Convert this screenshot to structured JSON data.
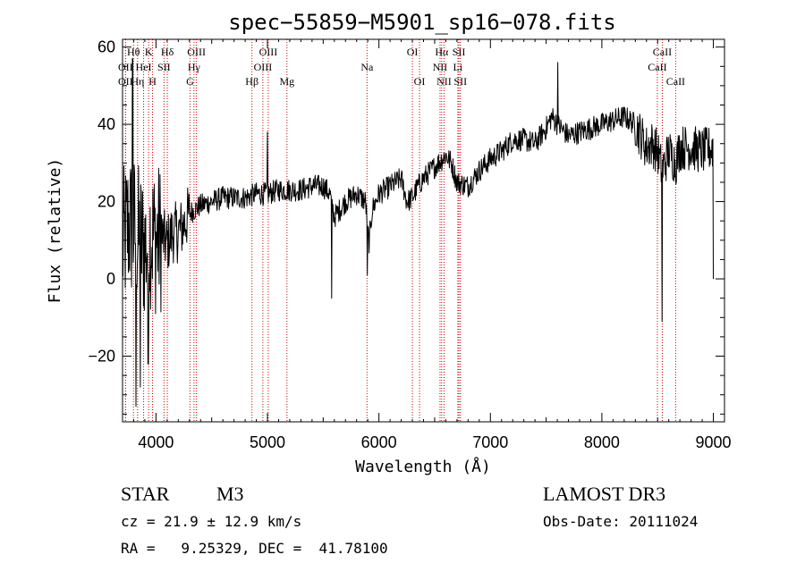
{
  "chart_data": {
    "type": "line",
    "title": "spec−55859−M5901_sp16−078.fits",
    "xlabel": "Wavelength (Å)",
    "ylabel": "Flux (relative)",
    "xlim": [
      3700,
      9100
    ],
    "ylim": [
      -37,
      62
    ],
    "x_ticks": [
      {
        "value": 4000,
        "label": "4000"
      },
      {
        "value": 5000,
        "label": "5000"
      },
      {
        "value": 6000,
        "label": "6000"
      },
      {
        "value": 7000,
        "label": "7000"
      },
      {
        "value": 8000,
        "label": "8000"
      },
      {
        "value": 9000,
        "label": "9000"
      }
    ],
    "y_ticks": [
      {
        "value": -20,
        "label": "−20"
      },
      {
        "value": 0,
        "label": "0"
      },
      {
        "value": 20,
        "label": "20"
      },
      {
        "value": 40,
        "label": "40"
      },
      {
        "value": 60,
        "label": "60"
      }
    ],
    "line_color": "#000000",
    "marker_color": "#cc0000",
    "spectrum_profile": [
      [
        3700,
        8
      ],
      [
        3750,
        14
      ],
      [
        3800,
        13
      ],
      [
        3850,
        10
      ],
      [
        3900,
        8
      ],
      [
        3950,
        12
      ],
      [
        4000,
        10
      ],
      [
        4050,
        11
      ],
      [
        4100,
        9
      ],
      [
        4150,
        12
      ],
      [
        4200,
        12
      ],
      [
        4250,
        14
      ],
      [
        4300,
        17
      ],
      [
        4350,
        18
      ],
      [
        4400,
        19
      ],
      [
        4500,
        20
      ],
      [
        4600,
        21
      ],
      [
        4700,
        21
      ],
      [
        4800,
        21
      ],
      [
        4900,
        22
      ],
      [
        5000,
        22
      ],
      [
        5100,
        23
      ],
      [
        5200,
        23
      ],
      [
        5300,
        23
      ],
      [
        5400,
        24
      ],
      [
        5500,
        24
      ],
      [
        5560,
        22
      ],
      [
        5600,
        16
      ],
      [
        5700,
        20
      ],
      [
        5800,
        22
      ],
      [
        5880,
        20
      ],
      [
        5910,
        9
      ],
      [
        5940,
        18
      ],
      [
        6000,
        22
      ],
      [
        6100,
        24
      ],
      [
        6200,
        26
      ],
      [
        6250,
        20
      ],
      [
        6300,
        21
      ],
      [
        6350,
        24
      ],
      [
        6400,
        26
      ],
      [
        6500,
        29
      ],
      [
        6600,
        32
      ],
      [
        6650,
        30
      ],
      [
        6700,
        25
      ],
      [
        6800,
        24
      ],
      [
        6900,
        28
      ],
      [
        7000,
        31
      ],
      [
        7100,
        33
      ],
      [
        7200,
        36
      ],
      [
        7300,
        36
      ],
      [
        7400,
        35
      ],
      [
        7500,
        39
      ],
      [
        7550,
        42
      ],
      [
        7600,
        40
      ],
      [
        7700,
        37
      ],
      [
        7800,
        38
      ],
      [
        7900,
        39
      ],
      [
        8000,
        40
      ],
      [
        8100,
        41
      ],
      [
        8200,
        42
      ],
      [
        8300,
        40
      ],
      [
        8400,
        34
      ],
      [
        8450,
        35
      ],
      [
        8500,
        33
      ],
      [
        8540,
        28
      ],
      [
        8600,
        33
      ],
      [
        8662,
        30
      ],
      [
        8700,
        34
      ],
      [
        8800,
        34
      ],
      [
        8900,
        33
      ],
      [
        9000,
        34
      ]
    ],
    "noise_bands": [
      {
        "from": 3700,
        "to": 4050,
        "amplitude": 20
      },
      {
        "from": 4050,
        "to": 4300,
        "amplitude": 8
      },
      {
        "from": 4300,
        "to": 7000,
        "amplitude": 3
      },
      {
        "from": 7000,
        "to": 8300,
        "amplitude": 3
      },
      {
        "from": 8300,
        "to": 9000,
        "amplitude": 6
      }
    ],
    "spikes": [
      {
        "x": 3790,
        "y": 57
      },
      {
        "x": 3820,
        "y": -33
      },
      {
        "x": 3860,
        "y": -28
      },
      {
        "x": 3930,
        "y": -22
      },
      {
        "x": 5000,
        "y": 38
      },
      {
        "x": 5577,
        "y": -5
      },
      {
        "x": 5895,
        "y": 1
      },
      {
        "x": 7605,
        "y": 56
      },
      {
        "x": 8540,
        "y": -11
      },
      {
        "x": 9000,
        "y": 0
      }
    ],
    "line_markers": [
      {
        "label": "Hθ",
        "wavelength": 3798,
        "row": 0
      },
      {
        "label": "OII",
        "wavelength": 3727,
        "row": 1
      },
      {
        "label": "OII",
        "wavelength": 3727,
        "row": 2
      },
      {
        "label": "Hη",
        "wavelength": 3835,
        "row": 2
      },
      {
        "label": "K",
        "wavelength": 3934,
        "row": 0
      },
      {
        "label": "HeI",
        "wavelength": 3889,
        "row": 1
      },
      {
        "label": "H",
        "wavelength": 3969,
        "row": 2
      },
      {
        "label": "Hδ",
        "wavelength": 4102,
        "row": 0
      },
      {
        "label": "SII",
        "wavelength": 4072,
        "row": 1
      },
      {
        "label": "OIII",
        "wavelength": 4363,
        "row": 0
      },
      {
        "label": "Hγ",
        "wavelength": 4341,
        "row": 1
      },
      {
        "label": "G",
        "wavelength": 4305,
        "row": 2
      },
      {
        "label": "Hβ",
        "wavelength": 4861,
        "row": 2
      },
      {
        "label": "OIII",
        "wavelength": 5007,
        "row": 0
      },
      {
        "label": "OIII",
        "wavelength": 4959,
        "row": 1
      },
      {
        "label": "Mg",
        "wavelength": 5175,
        "row": 2
      },
      {
        "label": "Na",
        "wavelength": 5893,
        "row": 1
      },
      {
        "label": "OI",
        "wavelength": 6300,
        "row": 0
      },
      {
        "label": "OI",
        "wavelength": 6364,
        "row": 2
      },
      {
        "label": "Hα",
        "wavelength": 6563,
        "row": 0
      },
      {
        "label": "NII",
        "wavelength": 6548,
        "row": 1
      },
      {
        "label": "NII",
        "wavelength": 6584,
        "row": 2
      },
      {
        "label": "SII",
        "wavelength": 6717,
        "row": 0
      },
      {
        "label": "Li",
        "wavelength": 6708,
        "row": 1
      },
      {
        "label": "SII",
        "wavelength": 6731,
        "row": 2
      },
      {
        "label": "CaII",
        "wavelength": 8542,
        "row": 0
      },
      {
        "label": "CaII",
        "wavelength": 8498,
        "row": 1
      },
      {
        "label": "CaII",
        "wavelength": 8662,
        "row": 2
      }
    ]
  },
  "info": {
    "object_class": "STAR",
    "subclass": "M3",
    "survey": "LAMOST DR3",
    "cz": "cz = 21.9 ± 12.9 km/s",
    "obs_date": "Obs-Date: 20111024",
    "coords": "RA =   9.25329, DEC =  41.78100"
  }
}
